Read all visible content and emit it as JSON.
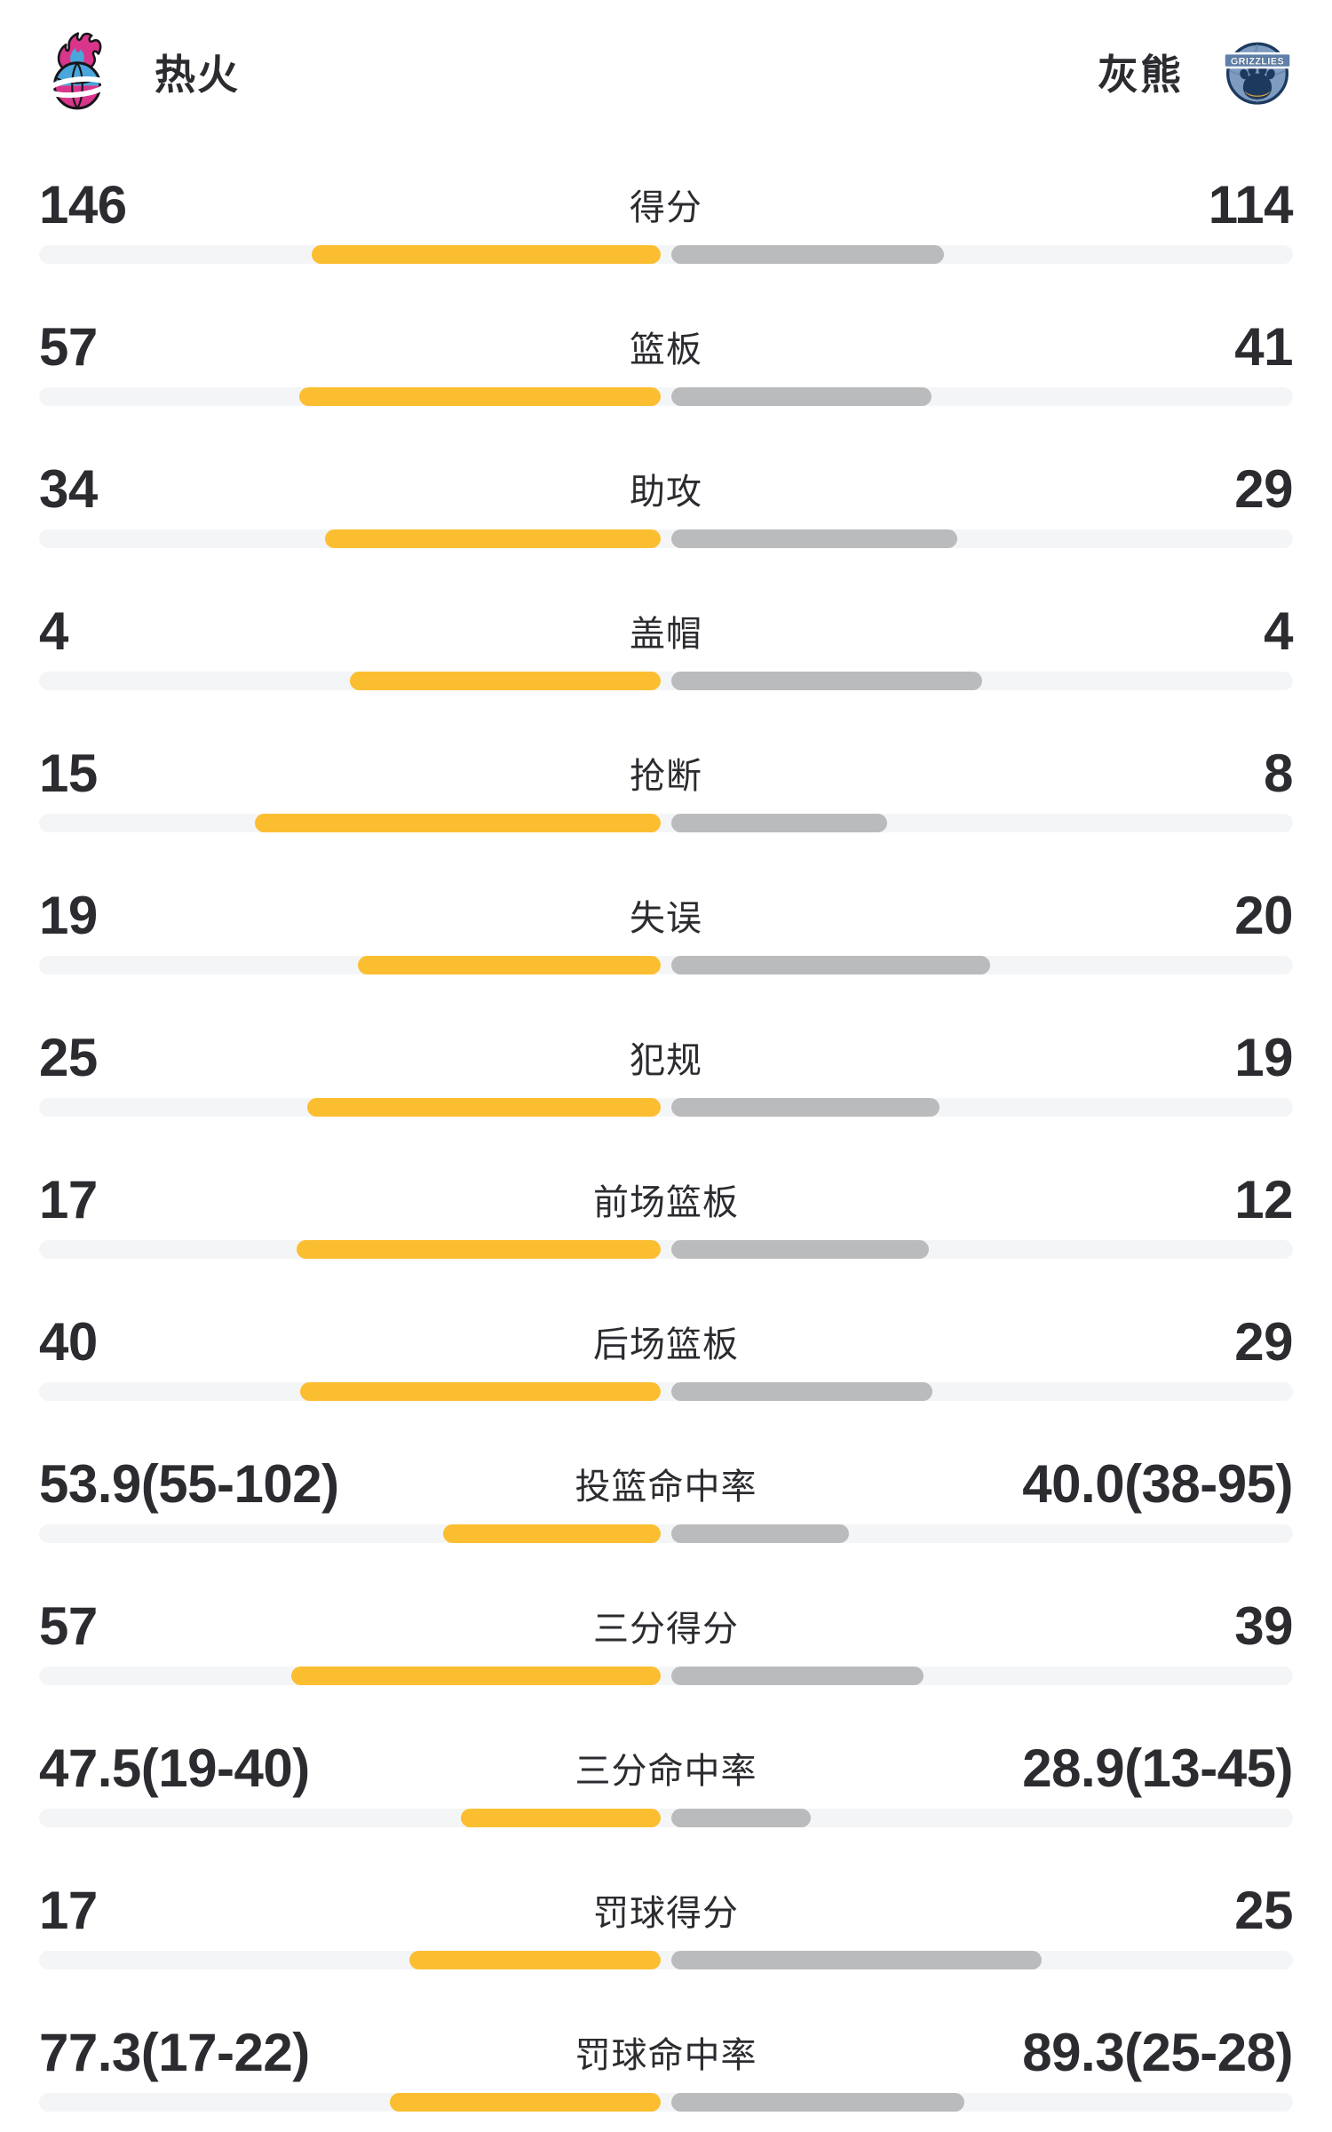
{
  "header": {
    "home": {
      "name": "热火"
    },
    "away": {
      "name": "灰熊",
      "logo_text": "GRIZZLIES"
    }
  },
  "chart_data": {
    "type": "bar",
    "layout": "paired-horizontal-bars-growing-from-center",
    "teams": [
      "热火",
      "灰熊"
    ],
    "colors": {
      "home_bar": "#FCBE31",
      "away_bar": "#BABBBC",
      "track": "#F4F5F7"
    },
    "rows": [
      {
        "label": "得分",
        "left": "146",
        "right": "114"
      },
      {
        "label": "篮板",
        "left": "57",
        "right": "41"
      },
      {
        "label": "助攻",
        "left": "34",
        "right": "29"
      },
      {
        "label": "盖帽",
        "left": "4",
        "right": "4"
      },
      {
        "label": "抢断",
        "left": "15",
        "right": "8"
      },
      {
        "label": "失误",
        "left": "19",
        "right": "20"
      },
      {
        "label": "犯规",
        "left": "25",
        "right": "19"
      },
      {
        "label": "前场篮板",
        "left": "17",
        "right": "12"
      },
      {
        "label": "后场篮板",
        "left": "40",
        "right": "29"
      },
      {
        "label": "投篮命中率",
        "left": "53.9(55-102)",
        "right": "40.0(38-95)"
      },
      {
        "label": "三分得分",
        "left": "57",
        "right": "39"
      },
      {
        "label": "三分命中率",
        "left": "47.5(19-40)",
        "right": "28.9(13-45)"
      },
      {
        "label": "罚球得分",
        "left": "17",
        "right": "25"
      },
      {
        "label": "罚球命中率",
        "left": "77.3(17-22)",
        "right": "89.3(25-28)"
      }
    ]
  }
}
